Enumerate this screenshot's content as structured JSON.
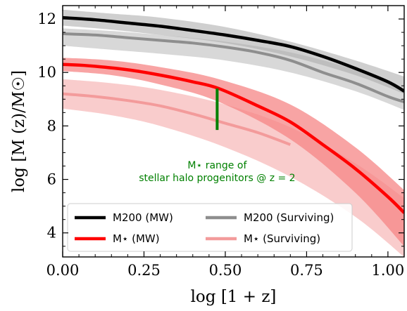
{
  "chart_data": {
    "type": "line",
    "xlabel": "log [1 + z]",
    "ylabel": "log [M (z)/M☉]",
    "xlim": [
      0.0,
      1.05
    ],
    "ylim": [
      3.1,
      12.5
    ],
    "xticks": [
      0.0,
      0.25,
      0.5,
      0.75,
      1.0
    ],
    "xtick_labels": [
      "0.00",
      "0.25",
      "0.50",
      "0.75",
      "1.00"
    ],
    "yticks": [
      4,
      6,
      8,
      10,
      12
    ],
    "ytick_labels": [
      "4",
      "6",
      "8",
      "10",
      "12"
    ],
    "grid": false,
    "legend_position": "bottom",
    "bands": [
      {
        "series": "M200 (MW)",
        "color": "#a8a8a8",
        "opacity": 0.55,
        "x": [
          0.0,
          0.15,
          0.3,
          0.5,
          0.7,
          0.9,
          1.05
        ],
        "lower": [
          11.75,
          11.6,
          11.4,
          11.1,
          10.6,
          9.9,
          9.2
        ],
        "upper": [
          12.35,
          12.2,
          12.05,
          11.7,
          11.15,
          10.45,
          9.85
        ]
      },
      {
        "series": "M200 (Surviving)",
        "color": "#a8a8a8",
        "opacity": 0.45,
        "x": [
          0.0,
          0.15,
          0.3,
          0.5,
          0.7,
          0.9,
          1.05
        ],
        "lower": [
          11.0,
          10.85,
          10.7,
          10.45,
          10.0,
          9.3,
          8.6
        ],
        "upper": [
          11.65,
          11.55,
          11.4,
          11.15,
          10.75,
          10.1,
          9.4
        ]
      },
      {
        "series": "M* (Surviving)",
        "color": "#f7b6b6",
        "opacity": 0.7,
        "x": [
          0.0,
          0.15,
          0.3,
          0.5,
          0.7,
          0.9,
          1.05
        ],
        "lower": [
          8.65,
          8.4,
          8.0,
          7.2,
          6.1,
          4.6,
          3.1
        ],
        "upper": [
          9.75,
          9.6,
          9.35,
          8.8,
          7.95,
          6.6,
          5.3
        ]
      },
      {
        "series": "M* (MW)",
        "color": "#f58585",
        "opacity": 0.75,
        "x": [
          0.0,
          0.15,
          0.3,
          0.48,
          0.7,
          0.9,
          1.05
        ],
        "lower": [
          10.05,
          9.9,
          9.55,
          8.9,
          7.5,
          5.5,
          3.5
        ],
        "upper": [
          10.55,
          10.45,
          10.2,
          9.75,
          8.8,
          7.2,
          5.6
        ]
      }
    ],
    "series": [
      {
        "name": "M200 (Surviving)",
        "color": "#8e8e8e",
        "width": 4,
        "x": [
          0.0,
          0.1,
          0.2,
          0.3,
          0.4,
          0.5,
          0.6,
          0.7,
          0.8,
          0.9,
          1.0,
          1.05
        ],
        "y": [
          11.45,
          11.4,
          11.3,
          11.2,
          11.1,
          10.95,
          10.75,
          10.45,
          10.0,
          9.6,
          9.1,
          8.9
        ]
      },
      {
        "name": "M* (Surviving)",
        "color": "#f39b9b",
        "width": 4,
        "x": [
          0.0,
          0.1,
          0.2,
          0.3,
          0.4,
          0.5,
          0.6,
          0.7
        ],
        "y": [
          9.2,
          9.1,
          8.95,
          8.75,
          8.45,
          8.1,
          7.75,
          7.3
        ]
      },
      {
        "name": "M200 (MW)",
        "color": "#000000",
        "width": 4.5,
        "x": [
          0.0,
          0.1,
          0.2,
          0.3,
          0.4,
          0.5,
          0.6,
          0.7,
          0.8,
          0.9,
          1.0,
          1.05
        ],
        "y": [
          12.05,
          11.97,
          11.85,
          11.73,
          11.57,
          11.4,
          11.2,
          10.97,
          10.6,
          10.15,
          9.65,
          9.3
        ]
      },
      {
        "name": "M* (MW)",
        "color": "#ff0000",
        "width": 4.5,
        "x": [
          0.0,
          0.08,
          0.2,
          0.3,
          0.4,
          0.48,
          0.6,
          0.7,
          0.8,
          0.9,
          1.0,
          1.05
        ],
        "y": [
          10.3,
          10.25,
          10.1,
          9.9,
          9.65,
          9.4,
          8.75,
          8.15,
          7.3,
          6.4,
          5.35,
          4.75
        ]
      }
    ],
    "marker": {
      "color": "#008000",
      "x": 0.475,
      "y_low": 7.85,
      "y_high": 9.4
    },
    "annotation": {
      "line1": "M⋆ range of",
      "line2": "stellar halo progenitors @ z = 2",
      "color": "#008000",
      "x": 0.475,
      "y": 6.2
    },
    "legend": [
      {
        "label": "M200 (MW)",
        "color": "#000000"
      },
      {
        "label": "M200 (Surviving)",
        "color": "#8e8e8e"
      },
      {
        "label": "M⋆ (MW)",
        "color": "#ff0000"
      },
      {
        "label": "M⋆ (Surviving)",
        "color": "#f39b9b"
      }
    ]
  }
}
